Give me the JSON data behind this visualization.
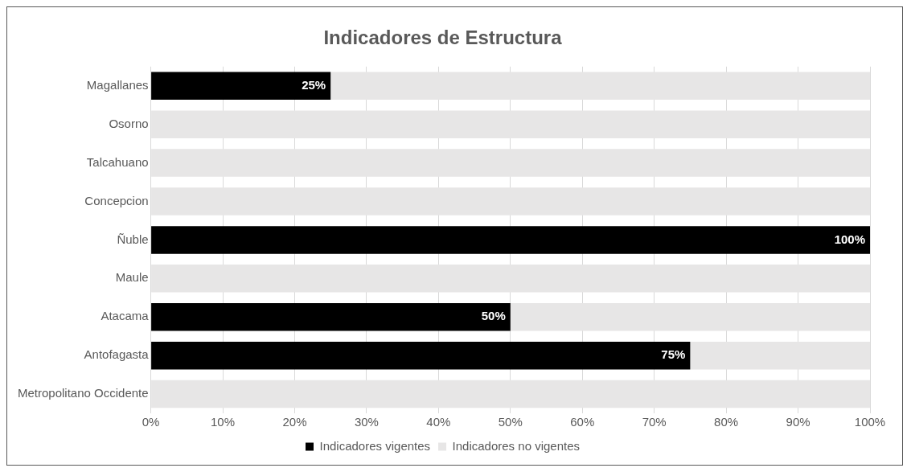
{
  "chart_data": {
    "type": "bar",
    "orientation": "horizontal",
    "stacked": true,
    "title": "Indicadores de Estructura",
    "categories": [
      "Magallanes",
      "Osorno",
      "Talcahuano",
      "Concepcion",
      "Ñuble",
      "Maule",
      "Atacama",
      "Antofagasta",
      "Metropolitano Occidente"
    ],
    "series": [
      {
        "name": "Indicadores vigentes",
        "color": "#000000",
        "values": [
          25,
          0,
          0,
          0,
          100,
          0,
          50,
          75,
          0
        ],
        "value_labels": [
          "25%",
          null,
          null,
          null,
          "100%",
          null,
          "50%",
          "75%",
          null
        ]
      },
      {
        "name": "Indicadores no vigentes",
        "color": "#e7e6e6",
        "values": [
          75,
          100,
          100,
          100,
          0,
          100,
          50,
          25,
          100
        ]
      }
    ],
    "xlim": [
      0,
      100
    ],
    "xticks": [
      {
        "value": 0,
        "label": "0%"
      },
      {
        "value": 10,
        "label": "10%"
      },
      {
        "value": 20,
        "label": "20%"
      },
      {
        "value": 30,
        "label": "30%"
      },
      {
        "value": 40,
        "label": "40%"
      },
      {
        "value": 50,
        "label": "50%"
      },
      {
        "value": 60,
        "label": "60%"
      },
      {
        "value": 70,
        "label": "70%"
      },
      {
        "value": 80,
        "label": "80%"
      },
      {
        "value": 90,
        "label": "90%"
      },
      {
        "value": 100,
        "label": "100%"
      }
    ],
    "grid": "x",
    "legend": "bottom"
  }
}
